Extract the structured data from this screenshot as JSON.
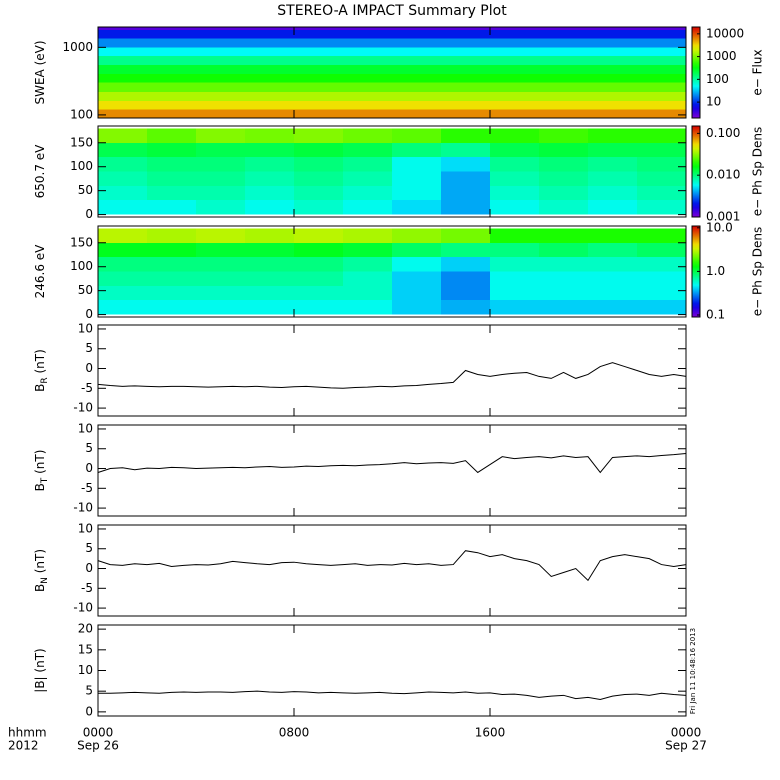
{
  "title": "STEREO-A IMPACT Summary Plot",
  "x_axis_label": [
    "hhmm",
    "2012"
  ],
  "timestamp": "Fri Jan 11 10:48:16 2013",
  "chart_data": [
    {
      "type": "heatmap",
      "ylabel": "SWEA (eV)",
      "log_y": true,
      "ylim": [
        90,
        2000
      ],
      "yticks": [
        100,
        1000
      ],
      "xlim": [
        0,
        24
      ],
      "x_bins": [
        0,
        24
      ],
      "y_bins": [
        90,
        120,
        160,
        220,
        300,
        400,
        550,
        750,
        1000,
        1350,
        1800,
        2000
      ],
      "z": [
        [
          6000
        ],
        [
          3000
        ],
        [
          1500
        ],
        [
          800
        ],
        [
          400
        ],
        [
          250
        ],
        [
          120
        ],
        [
          50
        ],
        [
          20
        ],
        [
          8
        ],
        [
          3
        ]
      ],
      "log_z": true,
      "zlim": [
        2,
        20000
      ],
      "zticks": [
        10,
        100,
        1000,
        10000
      ],
      "colorbar_label": "e− Flux"
    },
    {
      "type": "heatmap",
      "ylabel": "650.7 eV",
      "log_y": false,
      "ylim": [
        -5,
        185
      ],
      "yticks": [
        0,
        50,
        100,
        150
      ],
      "xlim": [
        0,
        24
      ],
      "x_bins": [
        0,
        2,
        4,
        6,
        8,
        10,
        12,
        14,
        16,
        18,
        20,
        22,
        24
      ],
      "y_bins": [
        0,
        30,
        60,
        90,
        120,
        150,
        180
      ],
      "z": [
        [
          0.006,
          0.006,
          0.007,
          0.006,
          0.007,
          0.006,
          0.005,
          0.004,
          0.006,
          0.007,
          0.006,
          0.007
        ],
        [
          0.007,
          0.008,
          0.008,
          0.007,
          0.008,
          0.007,
          0.006,
          0.004,
          0.007,
          0.008,
          0.007,
          0.008
        ],
        [
          0.008,
          0.009,
          0.009,
          0.008,
          0.009,
          0.008,
          0.006,
          0.004,
          0.008,
          0.009,
          0.008,
          0.009
        ],
        [
          0.009,
          0.01,
          0.01,
          0.009,
          0.01,
          0.009,
          0.006,
          0.005,
          0.009,
          0.01,
          0.009,
          0.01
        ],
        [
          0.012,
          0.013,
          0.012,
          0.012,
          0.013,
          0.012,
          0.01,
          0.009,
          0.012,
          0.013,
          0.012,
          0.012
        ],
        [
          0.03,
          0.025,
          0.03,
          0.028,
          0.03,
          0.027,
          0.025,
          0.02,
          0.02,
          0.022,
          0.02,
          0.02
        ]
      ],
      "log_z": true,
      "zlim": [
        0.001,
        0.15
      ],
      "zticks": [
        0.001,
        {
          "value": 0.01,
          "label": "0.010"
        },
        {
          "value": 0.1,
          "label": "0.100"
        }
      ],
      "colorbar_label": "e− Ph Sp Dens"
    },
    {
      "type": "heatmap",
      "ylabel": "246.6 eV",
      "log_y": false,
      "ylim": [
        -5,
        185
      ],
      "yticks": [
        0,
        50,
        100,
        150
      ],
      "xlim": [
        0,
        24
      ],
      "x_bins": [
        0,
        2,
        4,
        6,
        8,
        10,
        12,
        14,
        16,
        18,
        20,
        22,
        24
      ],
      "y_bins": [
        0,
        30,
        60,
        90,
        120,
        150,
        180
      ],
      "z": [
        [
          0.5,
          0.5,
          0.5,
          0.5,
          0.5,
          0.5,
          0.4,
          0.35,
          0.4,
          0.4,
          0.4,
          0.4
        ],
        [
          0.6,
          0.6,
          0.6,
          0.6,
          0.6,
          0.6,
          0.4,
          0.3,
          0.5,
          0.5,
          0.5,
          0.5
        ],
        [
          0.7,
          0.7,
          0.7,
          0.7,
          0.7,
          0.6,
          0.4,
          0.3,
          0.5,
          0.5,
          0.5,
          0.5
        ],
        [
          0.8,
          0.8,
          0.8,
          0.8,
          0.8,
          0.7,
          0.5,
          0.4,
          0.6,
          0.6,
          0.6,
          0.6
        ],
        [
          1.2,
          1.2,
          1.1,
          1.1,
          1.2,
          1.1,
          0.9,
          0.8,
          0.8,
          0.9,
          0.8,
          0.9
        ],
        [
          3,
          2.8,
          3,
          2.8,
          3,
          2.8,
          2.5,
          2.2,
          1.5,
          1.5,
          1.5,
          1.5
        ]
      ],
      "log_z": true,
      "zlim": [
        0.09,
        11
      ],
      "zticks": [
        0.1,
        {
          "value": 1,
          "label": "1.0"
        },
        {
          "value": 10,
          "label": "10.0"
        }
      ],
      "colorbar_label": "e− Ph Sp Dens"
    },
    {
      "type": "line",
      "ylabel": "B",
      "ylabel_subscript": "R",
      "ylabel_suffix": " (nT)",
      "color": "#000000",
      "xlim": [
        0,
        24
      ],
      "ylim": [
        -12,
        11
      ],
      "yticks": [
        -10,
        -5,
        0,
        5,
        10
      ],
      "x": [
        0,
        0.5,
        1,
        1.5,
        2,
        2.5,
        3,
        3.5,
        4,
        4.5,
        5,
        5.5,
        6,
        6.5,
        7,
        7.5,
        8,
        8.5,
        9,
        9.5,
        10,
        10.5,
        11,
        11.5,
        12,
        12.5,
        13,
        13.5,
        14,
        14.5,
        15,
        15.5,
        16,
        16.5,
        17,
        17.5,
        18,
        18.5,
        19,
        19.5,
        20,
        20.5,
        21,
        21.5,
        22,
        22.5,
        23,
        23.5,
        24
      ],
      "values": [
        -4,
        -4.3,
        -4.5,
        -4.4,
        -4.5,
        -4.6,
        -4.5,
        -4.5,
        -4.6,
        -4.7,
        -4.6,
        -4.5,
        -4.6,
        -4.5,
        -4.7,
        -4.8,
        -4.6,
        -4.5,
        -4.7,
        -4.9,
        -5,
        -4.8,
        -4.7,
        -4.5,
        -4.6,
        -4.4,
        -4.3,
        -4,
        -3.8,
        -3.5,
        -0.5,
        -1.5,
        -2,
        -1.5,
        -1.2,
        -1,
        -2,
        -2.5,
        -1,
        -2.5,
        -1.5,
        0.5,
        1.5,
        0.5,
        -0.5,
        -1.5,
        -2,
        -1.5,
        -2
      ]
    },
    {
      "type": "line",
      "ylabel": "B",
      "ylabel_subscript": "T",
      "ylabel_suffix": " (nT)",
      "color": "#000000",
      "xlim": [
        0,
        24
      ],
      "ylim": [
        -12,
        11
      ],
      "yticks": [
        -10,
        -5,
        0,
        5,
        10
      ],
      "x": [
        0,
        0.5,
        1,
        1.5,
        2,
        2.5,
        3,
        3.5,
        4,
        4.5,
        5,
        5.5,
        6,
        6.5,
        7,
        7.5,
        8,
        8.5,
        9,
        9.5,
        10,
        10.5,
        11,
        11.5,
        12,
        12.5,
        13,
        13.5,
        14,
        14.5,
        15,
        15.5,
        16,
        16.5,
        17,
        17.5,
        18,
        18.5,
        19,
        19.5,
        20,
        20.5,
        21,
        21.5,
        22,
        22.5,
        23,
        23.5,
        24
      ],
      "values": [
        -1,
        0,
        0.2,
        -0.3,
        0.1,
        0,
        0.3,
        0.2,
        0,
        0.1,
        0.2,
        0.3,
        0.2,
        0.4,
        0.5,
        0.3,
        0.4,
        0.6,
        0.5,
        0.7,
        0.8,
        0.7,
        0.9,
        1,
        1.2,
        1.5,
        1.2,
        1.4,
        1.5,
        1.3,
        2,
        -1,
        1,
        3,
        2.5,
        2.8,
        3,
        2.7,
        3.2,
        2.8,
        3,
        -1,
        2.8,
        3,
        3.2,
        3,
        3.3,
        3.5,
        3.8
      ]
    },
    {
      "type": "line",
      "ylabel": "B",
      "ylabel_subscript": "N",
      "ylabel_suffix": " (nT)",
      "color": "#000000",
      "xlim": [
        0,
        24
      ],
      "ylim": [
        -12,
        11
      ],
      "yticks": [
        -10,
        -5,
        0,
        5,
        10
      ],
      "x": [
        0,
        0.5,
        1,
        1.5,
        2,
        2.5,
        3,
        3.5,
        4,
        4.5,
        5,
        5.5,
        6,
        6.5,
        7,
        7.5,
        8,
        8.5,
        9,
        9.5,
        10,
        10.5,
        11,
        11.5,
        12,
        12.5,
        13,
        13.5,
        14,
        14.5,
        15,
        15.5,
        16,
        16.5,
        17,
        17.5,
        18,
        18.5,
        19,
        19.5,
        20,
        20.5,
        21,
        21.5,
        22,
        22.5,
        23,
        23.5,
        24
      ],
      "values": [
        2,
        1,
        0.8,
        1.2,
        1,
        1.3,
        0.5,
        0.8,
        1,
        0.9,
        1.2,
        1.8,
        1.5,
        1.2,
        1,
        1.5,
        1.6,
        1.2,
        1,
        0.8,
        1,
        1.2,
        0.8,
        1,
        0.9,
        1.3,
        1,
        1.2,
        0.8,
        1,
        4.5,
        4,
        3,
        3.5,
        2.5,
        2,
        1,
        -2,
        -1,
        0,
        -3,
        2,
        3,
        3.5,
        3,
        2.5,
        1,
        0.5,
        1
      ]
    },
    {
      "type": "line",
      "ylabel": "|B| (nT)",
      "color": "#000000",
      "xlim": [
        0,
        24
      ],
      "ylim": [
        -1,
        21
      ],
      "yticks": [
        0,
        5,
        10,
        15,
        20
      ],
      "x": [
        0,
        0.5,
        1,
        1.5,
        2,
        2.5,
        3,
        3.5,
        4,
        4.5,
        5,
        5.5,
        6,
        6.5,
        7,
        7.5,
        8,
        8.5,
        9,
        9.5,
        10,
        10.5,
        11,
        11.5,
        12,
        12.5,
        13,
        13.5,
        14,
        14.5,
        15,
        15.5,
        16,
        16.5,
        17,
        17.5,
        18,
        18.5,
        19,
        19.5,
        20,
        20.5,
        21,
        21.5,
        22,
        22.5,
        23,
        23.5,
        24
      ],
      "values": [
        4.5,
        4.5,
        4.6,
        4.7,
        4.6,
        4.5,
        4.7,
        4.8,
        4.7,
        4.8,
        4.8,
        4.7,
        4.9,
        5,
        4.8,
        4.7,
        4.9,
        4.8,
        4.6,
        4.7,
        4.6,
        4.5,
        4.6,
        4.7,
        4.5,
        4.4,
        4.6,
        4.8,
        4.7,
        4.6,
        4.8,
        4.5,
        4.6,
        4.2,
        4.3,
        4,
        3.5,
        3.8,
        4,
        3.2,
        3.5,
        3,
        3.8,
        4.2,
        4.3,
        4,
        4.5,
        4.2,
        4
      ],
      "xticks": [
        {
          "value": 0,
          "label": "0000"
        },
        {
          "value": 8,
          "label": "0800"
        },
        {
          "value": 16,
          "label": "1600"
        },
        {
          "value": 24,
          "label": "0000"
        }
      ],
      "x_date_labels": [
        {
          "value": 0,
          "label": "Sep 26"
        },
        {
          "value": 24,
          "label": "Sep 27"
        }
      ]
    }
  ]
}
